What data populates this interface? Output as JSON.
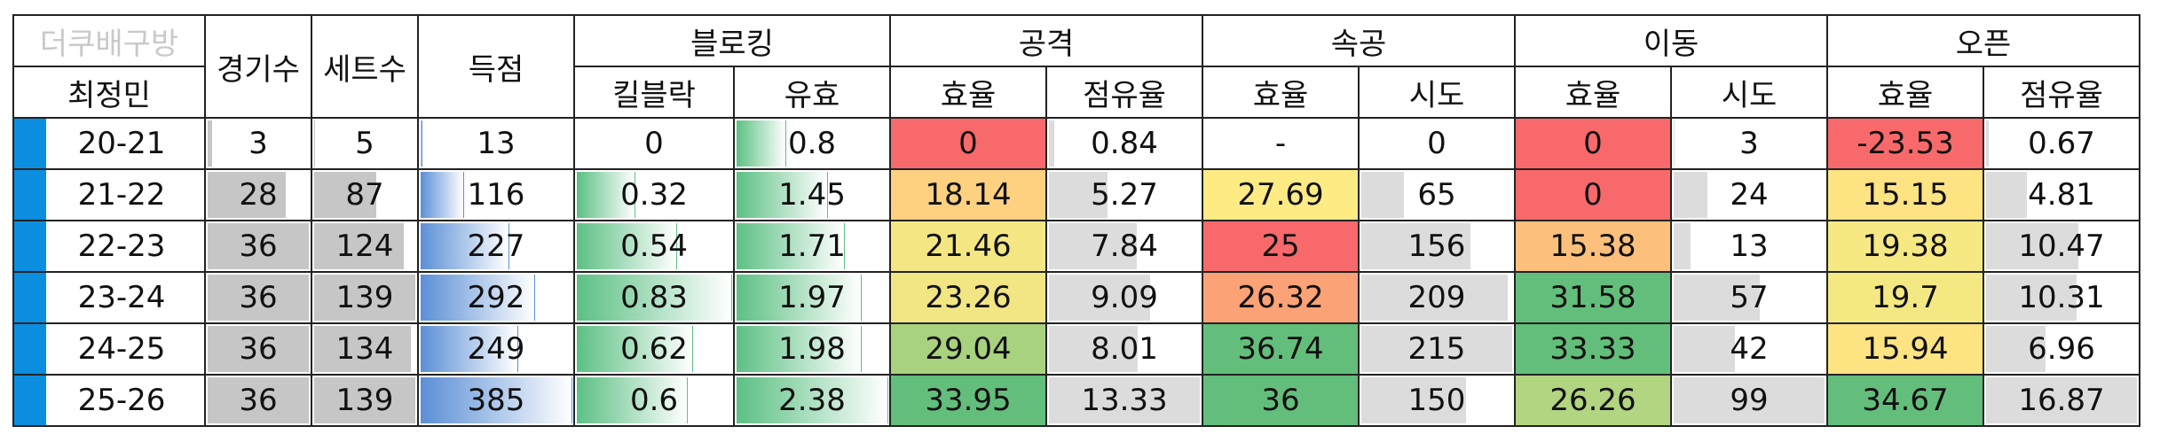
{
  "header": {
    "watermark": "더쿠배구방",
    "player": "최정민",
    "games": "경기수",
    "sets": "세트수",
    "points": "득점",
    "groups": {
      "block": "블로킹",
      "attack": "공격",
      "quick": "속공",
      "move": "이동",
      "open": "오픈"
    },
    "sub": {
      "block_kill": "킬블락",
      "block_valid": "유효",
      "attack_eff": "효율",
      "attack_share": "점유율",
      "quick_eff": "효율",
      "quick_att": "시도",
      "move_eff": "효율",
      "move_att": "시도",
      "open_eff": "효율",
      "open_share": "점유율"
    }
  },
  "rows": [
    {
      "season": "20-21",
      "games": "3",
      "sets": "5",
      "points": "13",
      "kill": "0",
      "valid": "0.8",
      "atk_eff": "0",
      "atk_share": "0.84",
      "q_eff": "-",
      "q_att": "0",
      "m_eff": "0",
      "m_att": "3",
      "o_eff": "-23.53",
      "o_share": "0.67"
    },
    {
      "season": "21-22",
      "games": "28",
      "sets": "87",
      "points": "116",
      "kill": "0.32",
      "valid": "1.45",
      "atk_eff": "18.14",
      "atk_share": "5.27",
      "q_eff": "27.69",
      "q_att": "65",
      "m_eff": "0",
      "m_att": "24",
      "o_eff": "15.15",
      "o_share": "4.81"
    },
    {
      "season": "22-23",
      "games": "36",
      "sets": "124",
      "points": "227",
      "kill": "0.54",
      "valid": "1.71",
      "atk_eff": "21.46",
      "atk_share": "7.84",
      "q_eff": "25",
      "q_att": "156",
      "m_eff": "15.38",
      "m_att": "13",
      "o_eff": "19.38",
      "o_share": "10.47"
    },
    {
      "season": "23-24",
      "games": "36",
      "sets": "139",
      "points": "292",
      "kill": "0.83",
      "valid": "1.97",
      "atk_eff": "23.26",
      "atk_share": "9.09",
      "q_eff": "26.32",
      "q_att": "209",
      "m_eff": "31.58",
      "m_att": "57",
      "o_eff": "19.7",
      "o_share": "10.31"
    },
    {
      "season": "24-25",
      "games": "36",
      "sets": "134",
      "points": "249",
      "kill": "0.62",
      "valid": "1.98",
      "atk_eff": "29.04",
      "atk_share": "8.01",
      "q_eff": "36.74",
      "q_att": "215",
      "m_eff": "33.33",
      "m_att": "42",
      "o_eff": "15.94",
      "o_share": "6.96"
    },
    {
      "season": "25-26",
      "games": "36",
      "sets": "139",
      "points": "385",
      "kill": "0.6",
      "valid": "2.38",
      "atk_eff": "33.95",
      "atk_share": "13.33",
      "q_eff": "36",
      "q_att": "150",
      "m_eff": "26.26",
      "m_att": "99",
      "o_eff": "34.67",
      "o_share": "16.87"
    }
  ],
  "cell_fills": {
    "atk_eff": [
      "#f8696b",
      "#fdd17f",
      "#f4e783",
      "#f1e683",
      "#a9d27f",
      "#63be7b"
    ],
    "q_eff": [
      "#ffffff",
      "#ffeb84",
      "#f8696b",
      "#fba276",
      "#63be7b",
      "#63be7b"
    ],
    "m_eff": [
      "#f8696b",
      "#f8696b",
      "#fdc07c",
      "#63be7b",
      "#63be7b",
      "#b1d580"
    ],
    "o_eff": [
      "#f8696b",
      "#fee382",
      "#f6e883",
      "#f4e883",
      "#fee382",
      "#63be7b"
    ]
  },
  "bar_levels": {
    "games": [
      0.08,
      0.78,
      1.0,
      1.0,
      1.0,
      1.0
    ],
    "sets": [
      0.04,
      0.63,
      0.89,
      1.0,
      0.96,
      1.0
    ],
    "points": [
      0.03,
      0.3,
      0.59,
      0.76,
      0.65,
      1.0
    ],
    "kill": [
      0.0,
      0.39,
      0.65,
      1.0,
      0.75,
      0.72
    ],
    "valid": [
      0.34,
      0.61,
      0.72,
      0.83,
      0.83,
      1.0
    ],
    "atk_share": [
      0.06,
      0.4,
      0.59,
      0.68,
      0.6,
      1.0
    ],
    "q_att": [
      0.0,
      0.3,
      0.73,
      0.97,
      1.0,
      0.7
    ],
    "m_att": [
      0.03,
      0.24,
      0.13,
      0.58,
      0.42,
      1.0
    ],
    "o_share": [
      0.04,
      0.29,
      0.62,
      0.61,
      0.41,
      1.0
    ]
  }
}
